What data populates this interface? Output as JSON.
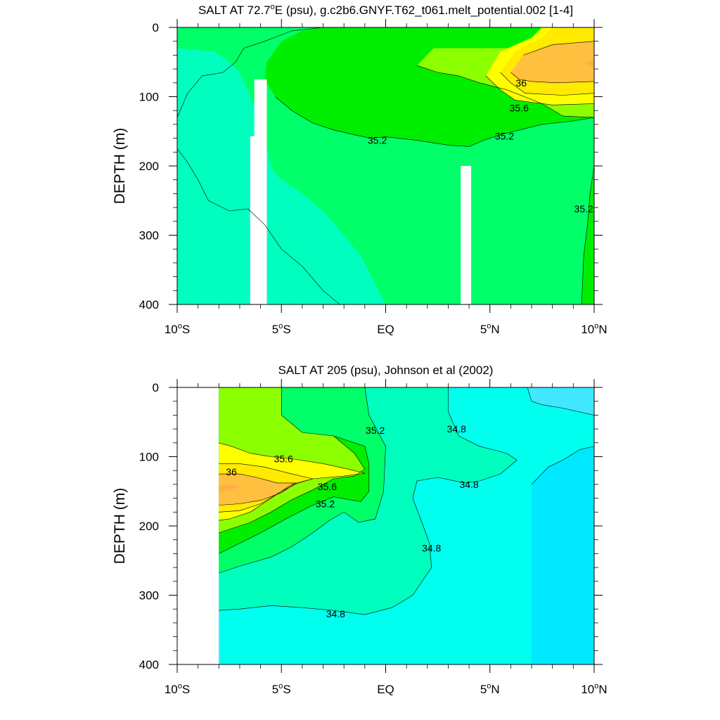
{
  "colors": {
    "s_lt34_8": "#00ffef",
    "s_34_8_35_0": "#00ffbf",
    "s_35_0_35_2": "#00ff68",
    "s_35_2_35_4": "#00ee00",
    "s_35_4_35_6": "#8cff00",
    "s_35_6_35_8": "#ffff00",
    "s_35_8_36_0": "#ffea00",
    "s_36_0_36_2": "#ffbf3f",
    "s_gt36_2": "#ffb045",
    "s_34_6_34_8_light": "#40e8ff",
    "s_lowest": "#00e8ff",
    "missing": "#ffffff"
  },
  "chart_data": [
    {
      "type": "heatmap",
      "title": "SALT AT  72.7°E (psu), g.c2b6.GNYF.T62_t061.melt_potential.002 [1-4]",
      "title_parts": [
        "SALT AT  72.7",
        "o",
        "E (psu), g.c2b6.GNYF.T62_t061.melt_potential.002 [1-4]"
      ],
      "ylabel": "DEPTH (m)",
      "xlabel": "",
      "xlim": [
        -10,
        10
      ],
      "ylim": [
        400,
        0
      ],
      "y_reversed": true,
      "x_ticks": [
        {
          "value": -10,
          "num": "10",
          "sup": "o",
          "hem": "S"
        },
        {
          "value": -5,
          "num": "5",
          "sup": "o",
          "hem": "S"
        },
        {
          "value": 0,
          "num": "EQ",
          "sup": "",
          "hem": ""
        },
        {
          "value": 5,
          "num": "5",
          "sup": "o",
          "hem": "N"
        },
        {
          "value": 10,
          "num": "10",
          "sup": "o",
          "hem": "N"
        }
      ],
      "y_ticks": [
        0,
        100,
        200,
        300,
        400
      ],
      "contour_levels": [
        35.2,
        35.6,
        36
      ],
      "contour_labels": [
        {
          "text": "36",
          "x": 6.5,
          "y": 80
        },
        {
          "text": "35.6",
          "x": 6.4,
          "y": 116
        },
        {
          "text": "35.2",
          "x": -0.4,
          "y": 163
        },
        {
          "text": "35.2",
          "x": 5.7,
          "y": 157
        },
        {
          "text": "35.2",
          "x": 9.5,
          "y": 262
        }
      ],
      "missing_columns": [
        {
          "x0": -6.5,
          "x1": -5.7,
          "y0": 75,
          "y1": 400
        },
        {
          "x0": 3.6,
          "x1": 4.1,
          "y0": 200,
          "y1": 400
        }
      ]
    },
    {
      "type": "heatmap",
      "title": "SALT AT 205 (psu), Johnson et al (2002)",
      "ylabel": "DEPTH (m)",
      "xlabel": "",
      "xlim": [
        -10,
        10
      ],
      "ylim": [
        400,
        0
      ],
      "y_reversed": true,
      "x_ticks": [
        {
          "value": -10,
          "num": "10",
          "sup": "o",
          "hem": "S"
        },
        {
          "value": -5,
          "num": "5",
          "sup": "o",
          "hem": "S"
        },
        {
          "value": 0,
          "num": "EQ",
          "sup": "",
          "hem": ""
        },
        {
          "value": 5,
          "num": "5",
          "sup": "o",
          "hem": "N"
        },
        {
          "value": 10,
          "num": "10",
          "sup": "o",
          "hem": "N"
        }
      ],
      "y_ticks": [
        0,
        100,
        200,
        300,
        400
      ],
      "contour_levels": [
        34.8,
        35.2,
        35.6,
        36
      ],
      "contour_labels": [
        {
          "text": "35.2",
          "x": -0.5,
          "y": 62
        },
        {
          "text": "34.8",
          "x": 3.4,
          "y": 60
        },
        {
          "text": "35.6",
          "x": -4.9,
          "y": 103
        },
        {
          "text": "36",
          "x": -7.4,
          "y": 122
        },
        {
          "text": "35.6",
          "x": -2.8,
          "y": 143
        },
        {
          "text": "35.2",
          "x": -2.9,
          "y": 168
        },
        {
          "text": "34.8",
          "x": 4.0,
          "y": 140
        },
        {
          "text": "34.8",
          "x": 2.2,
          "y": 232
        },
        {
          "text": "34.8",
          "x": -2.4,
          "y": 327
        }
      ],
      "missing_columns": [
        {
          "x0": -10,
          "x1": -8.0,
          "y0": 0,
          "y1": 400
        }
      ]
    }
  ]
}
